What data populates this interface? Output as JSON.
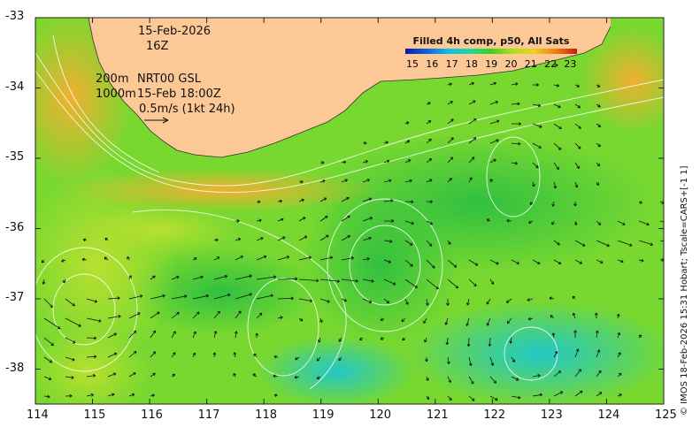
{
  "map": {
    "date_line": "15-Feb-2026",
    "hour_line": "16Z",
    "depth_line_1": "200m",
    "depth_line_2": "1000m",
    "product_line": "NRT00 GSL",
    "current_time_line": "15-Feb 18:00Z",
    "speed_scale_label": "0.5m/s (1kt 24h)",
    "colorbar_title": "Filled 4h comp, p50, All Sats",
    "colorbar_ticks": [
      "15",
      "16",
      "17",
      "18",
      "19",
      "20",
      "21",
      "22",
      "23"
    ],
    "colorbar_colors": [
      "#0b1aa0",
      "#1060e0",
      "#10c0e8",
      "#20d8a0",
      "#40d020",
      "#a8e020",
      "#f0d020",
      "#f08010",
      "#c02010"
    ],
    "credit": "© IMOS 18-Feb-2026 15:31 Hobart; Tscale=CARS+[-1 1]",
    "lon_ticks": [
      "114",
      "115",
      "116",
      "117",
      "118",
      "119",
      "120",
      "121",
      "122",
      "123",
      "124",
      "125"
    ],
    "lat_ticks": [
      "-33",
      "-34",
      "-35",
      "-36",
      "-37",
      "-38"
    ],
    "land_color": "#fcc896"
  }
}
